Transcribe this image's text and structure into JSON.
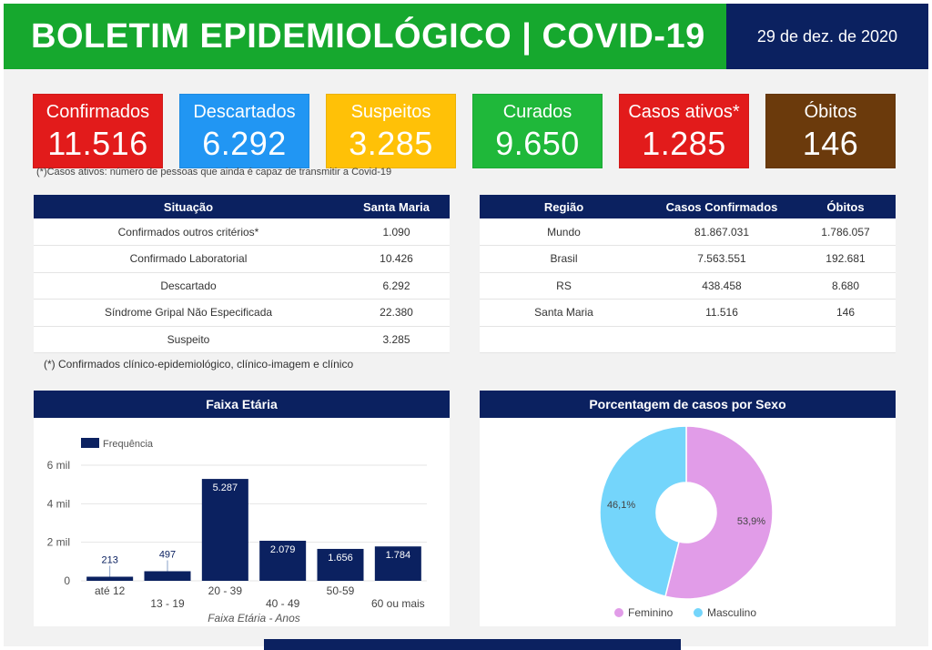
{
  "header": {
    "title": "BOLETIM EPIDEMIOLÓGICO | COVID-19",
    "date": "29 de dez. de 2020"
  },
  "cards": [
    {
      "label": "Confirmados",
      "value": "11.516",
      "color": "#e21b1b",
      "text_color": "#ffffff"
    },
    {
      "label": "Descartados",
      "value": "6.292",
      "color": "#2196f3",
      "text_color": "#ffffff"
    },
    {
      "label": "Suspeitos",
      "value": "3.285",
      "color": "#ffc107",
      "text_color": "#ffffff"
    },
    {
      "label": "Curados",
      "value": "9.650",
      "color": "#1fb83a",
      "text_color": "#ffffff"
    },
    {
      "label": "Casos ativos*",
      "value": "1.285",
      "color": "#e21b1b",
      "text_color": "#ffffff"
    },
    {
      "label": "Óbitos",
      "value": "146",
      "color": "#6b3a0c",
      "text_color": "#ffffff"
    }
  ],
  "active_note": "(*)Casos ativos: número de pessoas que ainda é capaz de transmitir a Covid-19",
  "situation_table": {
    "headers": [
      "Situação",
      "Santa Maria"
    ],
    "rows": [
      [
        "Confirmados outros critérios*",
        "1.090"
      ],
      [
        "Confirmado Laboratorial",
        "10.426"
      ],
      [
        "Descartado",
        "6.292"
      ],
      [
        "Síndrome Gripal Não Especificada",
        "22.380"
      ],
      [
        "Suspeito",
        "3.285"
      ]
    ],
    "footnote": "(*) Confirmados clínico-epidemiológico, clínico-imagem e clínico"
  },
  "region_table": {
    "headers": [
      "Região",
      "Casos Confirmados",
      "Óbitos"
    ],
    "rows": [
      [
        "Mundo",
        "81.867.031",
        "1.786.057"
      ],
      [
        "Brasil",
        "7.563.551",
        "192.681"
      ],
      [
        "RS",
        "438.458",
        "8.680"
      ],
      [
        "Santa Maria",
        "11.516",
        "146"
      ]
    ]
  },
  "age_panel": {
    "title": "Faixa Etária"
  },
  "sex_panel": {
    "title": "Porcentagem de casos por Sexo"
  },
  "chart_data": [
    {
      "type": "bar",
      "title": "Faixa Etária",
      "categories": [
        "até 12",
        "13 - 19",
        "20 - 39",
        "40 - 49",
        "50-59",
        "60 ou mais"
      ],
      "series": [
        {
          "name": "Frequência",
          "values": [
            213,
            497,
            5287,
            2079,
            1656,
            1784
          ]
        }
      ],
      "data_labels": [
        "213",
        "497",
        "5.287",
        "2.079",
        "1.656",
        "1.784"
      ],
      "xlabel": "Faixa Etária - Anos",
      "ylabel": "",
      "ylim": [
        0,
        6000
      ],
      "yticks": [
        "0",
        "2 mil",
        "4 mil",
        "6 mil"
      ],
      "legend": "top-left",
      "grid": true,
      "bar_color": "#0b2160"
    },
    {
      "type": "pie",
      "title": "Porcentagem de casos por Sexo",
      "labels": [
        "Feminino",
        "Masculino"
      ],
      "values": [
        53.9,
        46.1
      ],
      "value_labels": [
        "53,9%",
        "46,1%"
      ],
      "colors": [
        "#e19ce8",
        "#74d5fb"
      ],
      "legend": "bottom"
    }
  ]
}
